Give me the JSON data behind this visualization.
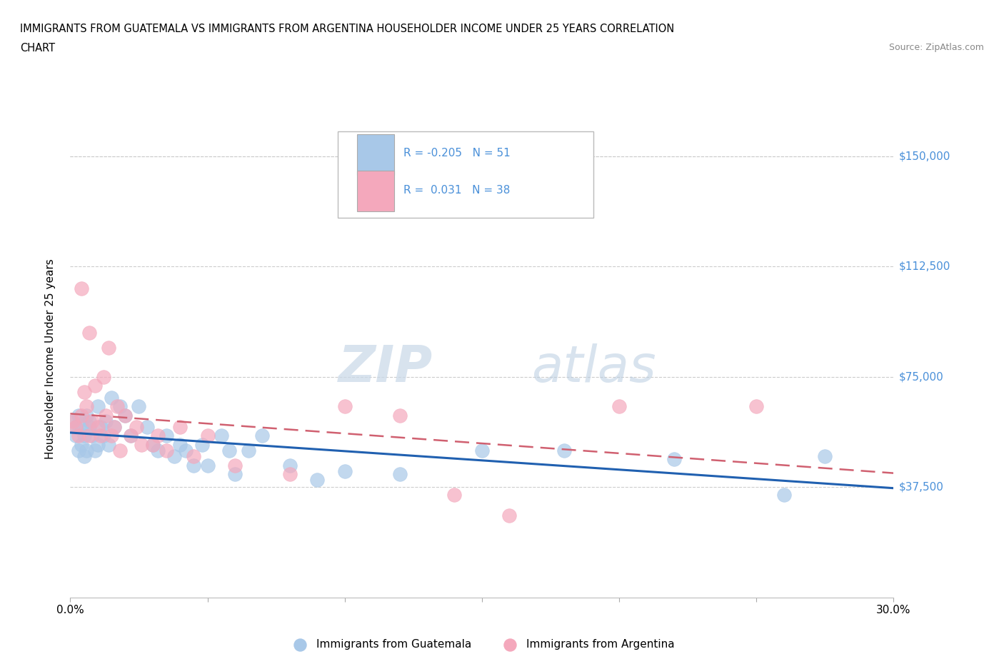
{
  "title_line1": "IMMIGRANTS FROM GUATEMALA VS IMMIGRANTS FROM ARGENTINA HOUSEHOLDER INCOME UNDER 25 YEARS CORRELATION",
  "title_line2": "CHART",
  "source": "Source: ZipAtlas.com",
  "ylabel": "Householder Income Under 25 years",
  "xlim": [
    0,
    0.3
  ],
  "ylim": [
    0,
    162500
  ],
  "yticks": [
    37500,
    75000,
    112500,
    150000
  ],
  "ytick_labels": [
    "$37,500",
    "$75,000",
    "$112,500",
    "$150,000"
  ],
  "xticks": [
    0.0,
    0.05,
    0.1,
    0.15,
    0.2,
    0.25,
    0.3
  ],
  "guatemala_color": "#a8c8e8",
  "argentina_color": "#f4a8bc",
  "trend_guatemala_color": "#2060b0",
  "trend_argentina_color": "#d06070",
  "R_guatemala": -0.205,
  "N_guatemala": 51,
  "R_argentina": 0.031,
  "N_argentina": 38,
  "legend_label_1": "Immigrants from Guatemala",
  "legend_label_2": "Immigrants from Argentina",
  "watermark_zip": "ZIP",
  "watermark_atlas": "atlas",
  "axis_label_color": "#4a90d9",
  "guatemala_x": [
    0.001,
    0.002,
    0.002,
    0.003,
    0.003,
    0.004,
    0.004,
    0.005,
    0.005,
    0.006,
    0.006,
    0.007,
    0.007,
    0.008,
    0.009,
    0.01,
    0.01,
    0.011,
    0.012,
    0.013,
    0.014,
    0.015,
    0.016,
    0.018,
    0.02,
    0.022,
    0.025,
    0.028,
    0.03,
    0.032,
    0.035,
    0.038,
    0.04,
    0.042,
    0.045,
    0.048,
    0.05,
    0.055,
    0.058,
    0.06,
    0.065,
    0.07,
    0.08,
    0.09,
    0.1,
    0.12,
    0.15,
    0.18,
    0.22,
    0.26,
    0.275
  ],
  "guatemala_y": [
    60000,
    58000,
    55000,
    62000,
    50000,
    58000,
    52000,
    55000,
    48000,
    62000,
    50000,
    58000,
    60000,
    55000,
    50000,
    65000,
    52000,
    58000,
    55000,
    60000,
    52000,
    68000,
    58000,
    65000,
    62000,
    55000,
    65000,
    58000,
    52000,
    50000,
    55000,
    48000,
    52000,
    50000,
    45000,
    52000,
    45000,
    55000,
    50000,
    42000,
    50000,
    55000,
    45000,
    40000,
    43000,
    42000,
    50000,
    50000,
    47000,
    35000,
    48000
  ],
  "argentina_x": [
    0.001,
    0.002,
    0.003,
    0.004,
    0.004,
    0.005,
    0.006,
    0.007,
    0.007,
    0.008,
    0.009,
    0.01,
    0.011,
    0.012,
    0.013,
    0.014,
    0.015,
    0.016,
    0.017,
    0.018,
    0.02,
    0.022,
    0.024,
    0.026,
    0.03,
    0.032,
    0.035,
    0.04,
    0.045,
    0.05,
    0.06,
    0.08,
    0.1,
    0.12,
    0.14,
    0.16,
    0.2,
    0.25
  ],
  "argentina_y": [
    60000,
    58000,
    55000,
    105000,
    62000,
    70000,
    65000,
    55000,
    90000,
    60000,
    72000,
    58000,
    55000,
    75000,
    62000,
    85000,
    55000,
    58000,
    65000,
    50000,
    62000,
    55000,
    58000,
    52000,
    52000,
    55000,
    50000,
    58000,
    48000,
    55000,
    45000,
    42000,
    65000,
    62000,
    35000,
    28000,
    65000,
    65000
  ]
}
